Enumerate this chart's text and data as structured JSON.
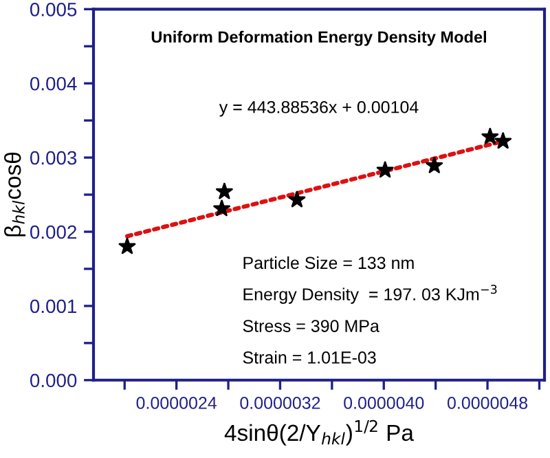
{
  "chart_data": {
    "type": "scatter",
    "title": "Uniform Deformation Energy Density Model",
    "xlabel": "4sinθ(2/Y$_{hkl}$)$^{1/2}$ Pa",
    "ylabel": "β$_{hkl}$cosθ",
    "series": [
      {
        "color": "#000000",
        "marker": "star",
        "x": [
          2.02e-06,
          2.75e-06,
          2.77e-06,
          3.33e-06,
          4.01e-06,
          4.39e-06,
          4.82e-06,
          4.92e-06
        ],
        "values": [
          0.0018,
          0.00231,
          0.00254,
          0.00243,
          0.00283,
          0.00289,
          0.00328,
          0.00322
        ]
      },
      {
        "type": "line",
        "color": "#dd1111",
        "line_style": "dotted",
        "x": [
          2.02e-06,
          4.92e-06
        ],
        "values": [
          0.00194,
          0.00322
        ]
      }
    ],
    "xlim": [
      1.76e-06,
      5.24e-06
    ],
    "xticks": [
      {
        "value": 2e-06,
        "label": null
      },
      {
        "value": 2.4e-06,
        "label": "0.0000024"
      },
      {
        "value": 2.8e-06,
        "label": null
      },
      {
        "value": 3.2e-06,
        "label": "0.0000032"
      },
      {
        "value": 3.6e-06,
        "label": null
      },
      {
        "value": 4e-06,
        "label": "0.0000040"
      },
      {
        "value": 4.4e-06,
        "label": null
      },
      {
        "value": 4.8e-06,
        "label": "0.0000048"
      },
      {
        "value": 5.2e-06,
        "label": null
      }
    ],
    "ylim": [
      0,
      0.005
    ],
    "yticks": [
      {
        "value": 0,
        "label": "0.000"
      },
      {
        "value": 0.0005,
        "label": null
      },
      {
        "value": 0.001,
        "label": "0.001"
      },
      {
        "value": 0.0015,
        "label": null
      },
      {
        "value": 0.002,
        "label": "0.002"
      },
      {
        "value": 0.0025,
        "label": null
      },
      {
        "value": 0.003,
        "label": "0.003"
      },
      {
        "value": 0.0035,
        "label": null
      },
      {
        "value": 0.004,
        "label": "0.004"
      },
      {
        "value": 0.0045,
        "label": null
      },
      {
        "value": 0.005,
        "label": "0.005"
      }
    ],
    "annotations": [
      "y = 443.88536x + 0.00104",
      "Particle Size = 133 nm",
      "Energy Density  = 197. 03 KJm$^{−3}$",
      "Stress = 390 MPa",
      "Strain = 1.01E-03"
    ],
    "grid": false,
    "legend": false
  }
}
